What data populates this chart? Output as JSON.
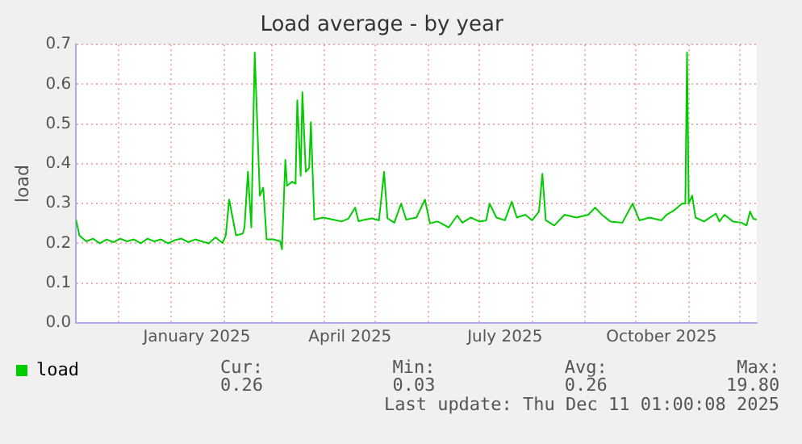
{
  "chart_data": {
    "type": "line",
    "title": "Load average - by year",
    "ylabel": "load",
    "x": [
      "2024-11-06",
      "2024-11-08",
      "2024-11-12",
      "2024-11-16",
      "2024-11-20",
      "2024-11-24",
      "2024-11-28",
      "2024-12-02",
      "2024-12-06",
      "2024-12-10",
      "2024-12-14",
      "2024-12-18",
      "2024-12-22",
      "2024-12-26",
      "2024-12-30",
      "2025-01-03",
      "2025-01-07",
      "2025-01-11",
      "2025-01-15",
      "2025-01-19",
      "2025-01-23",
      "2025-01-27",
      "2025-01-31",
      "2025-02-02",
      "2025-02-04",
      "2025-02-06",
      "2025-02-08",
      "2025-02-12",
      "2025-02-13",
      "2025-02-15",
      "2025-02-17",
      "2025-02-19",
      "2025-02-22",
      "2025-02-24",
      "2025-02-26",
      "2025-03-02",
      "2025-03-06",
      "2025-03-07",
      "2025-03-09",
      "2025-03-10",
      "2025-03-13",
      "2025-03-15",
      "2025-03-16",
      "2025-03-18",
      "2025-03-19",
      "2025-03-21",
      "2025-03-23",
      "2025-03-24",
      "2025-03-26",
      "2025-03-31",
      "2025-04-06",
      "2025-04-11",
      "2025-04-15",
      "2025-04-19",
      "2025-04-21",
      "2025-04-25",
      "2025-04-29",
      "2025-05-03",
      "2025-05-06",
      "2025-05-08",
      "2025-05-12",
      "2025-05-16",
      "2025-05-19",
      "2025-05-25",
      "2025-05-30",
      "2025-06-02",
      "2025-06-06",
      "2025-06-08",
      "2025-06-13",
      "2025-06-18",
      "2025-06-21",
      "2025-06-26",
      "2025-07-01",
      "2025-07-05",
      "2025-07-07",
      "2025-07-11",
      "2025-07-16",
      "2025-07-20",
      "2025-07-23",
      "2025-07-28",
      "2025-08-01",
      "2025-08-05",
      "2025-08-07",
      "2025-08-09",
      "2025-08-14",
      "2025-08-20",
      "2025-08-27",
      "2025-09-03",
      "2025-09-07",
      "2025-09-11",
      "2025-09-16",
      "2025-09-23",
      "2025-09-29",
      "2025-10-03",
      "2025-10-09",
      "2025-10-16",
      "2025-10-19",
      "2025-10-24",
      "2025-10-28",
      "2025-10-30",
      "2025-10-31",
      "2025-11-01",
      "2025-11-03",
      "2025-11-05",
      "2025-11-10",
      "2025-11-17",
      "2025-11-19",
      "2025-11-22",
      "2025-11-27",
      "2025-12-02",
      "2025-12-05",
      "2025-12-07",
      "2025-12-09",
      "2025-12-11"
    ],
    "series": [
      {
        "name": "load",
        "color": "#00cc00",
        "values": [
          0.26,
          0.22,
          0.205,
          0.212,
          0.2,
          0.21,
          0.203,
          0.212,
          0.205,
          0.21,
          0.2,
          0.212,
          0.205,
          0.21,
          0.2,
          0.208,
          0.212,
          0.203,
          0.21,
          0.205,
          0.2,
          0.215,
          0.201,
          0.22,
          0.31,
          0.265,
          0.22,
          0.225,
          0.24,
          0.38,
          0.24,
          0.68,
          0.32,
          0.34,
          0.21,
          0.21,
          0.205,
          0.185,
          0.41,
          0.345,
          0.355,
          0.35,
          0.56,
          0.37,
          0.58,
          0.38,
          0.39,
          0.505,
          0.26,
          0.265,
          0.26,
          0.255,
          0.262,
          0.29,
          0.256,
          0.26,
          0.263,
          0.258,
          0.38,
          0.263,
          0.252,
          0.3,
          0.26,
          0.265,
          0.31,
          0.25,
          0.255,
          0.252,
          0.24,
          0.27,
          0.252,
          0.265,
          0.255,
          0.258,
          0.3,
          0.265,
          0.258,
          0.305,
          0.265,
          0.272,
          0.258,
          0.28,
          0.375,
          0.258,
          0.245,
          0.272,
          0.265,
          0.272,
          0.29,
          0.272,
          0.255,
          0.252,
          0.3,
          0.258,
          0.265,
          0.258,
          0.272,
          0.285,
          0.3,
          0.3,
          0.68,
          0.3,
          0.32,
          0.265,
          0.255,
          0.275,
          0.255,
          0.272,
          0.255,
          0.252,
          0.245,
          0.28,
          0.262,
          0.26
        ]
      }
    ],
    "xlim": [
      "2024-11-06",
      "2025-12-11"
    ],
    "xticks": [
      {
        "value": "2024-12-01",
        "label": null
      },
      {
        "value": "2025-01-01",
        "label": null
      },
      {
        "value": "2025-01-16",
        "label": "January 2025"
      },
      {
        "value": "2025-02-01",
        "label": null
      },
      {
        "value": "2025-03-01",
        "label": null
      },
      {
        "value": "2025-04-01",
        "label": null
      },
      {
        "value": "2025-04-16",
        "label": "April 2025"
      },
      {
        "value": "2025-05-01",
        "label": null
      },
      {
        "value": "2025-06-01",
        "label": null
      },
      {
        "value": "2025-07-01",
        "label": null
      },
      {
        "value": "2025-07-16",
        "label": "July 2025"
      },
      {
        "value": "2025-08-01",
        "label": null
      },
      {
        "value": "2025-09-01",
        "label": null
      },
      {
        "value": "2025-10-01",
        "label": null
      },
      {
        "value": "2025-10-16",
        "label": "October 2025"
      },
      {
        "value": "2025-11-01",
        "label": null
      },
      {
        "value": "2025-12-01",
        "label": null
      }
    ],
    "ylim": [
      0,
      0.7
    ],
    "yticks": [
      {
        "value": 0,
        "label": "0.0"
      },
      {
        "value": 0.1,
        "label": "0.1"
      },
      {
        "value": 0.2,
        "label": "0.2"
      },
      {
        "value": 0.3,
        "label": "0.3"
      },
      {
        "value": 0.4,
        "label": "0.4"
      },
      {
        "value": 0.5,
        "label": "0.5"
      },
      {
        "value": 0.6,
        "label": "0.6"
      },
      {
        "value": 0.7,
        "label": "0.7"
      }
    ],
    "grid": true,
    "legend": "bottom left",
    "marker": "none",
    "line_style": "solid",
    "annotations": [
      "Cur:",
      "0.26",
      "Min:",
      "0.03",
      "Avg:",
      "0.26",
      "Max:",
      "19.80",
      "Last update: Thu Dec 11 01:00:08 2025"
    ]
  }
}
